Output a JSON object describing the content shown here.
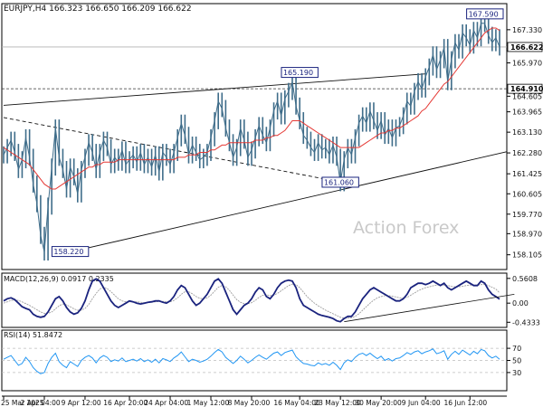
{
  "chart_data": {
    "type": "line",
    "main": {
      "header": "EURJPY,H4  166.323 166.650 166.209 166.622",
      "watermark": "Action Forex",
      "ylim": [
        157.5,
        168.4
      ],
      "yticks": [
        167.33,
        165.97,
        164.605,
        163.965,
        163.13,
        162.28,
        161.425,
        160.605,
        159.77,
        158.97,
        158.105
      ],
      "ytick_labels": [
        "167.330",
        "165.970",
        "164.605",
        "163.965",
        "163.130",
        "162.280",
        "161.425",
        "160.605",
        "159.770",
        "158.970",
        "158.105"
      ],
      "current_price": "166.622",
      "level_price": "164.910",
      "level_value": 164.91,
      "annotations": [
        {
          "label": "167.590",
          "x": 131,
          "y": 167.59
        },
        {
          "label": "165.190",
          "x": 80,
          "y": 165.19
        },
        {
          "label": "161.060",
          "x": 91,
          "y": 161.06
        },
        {
          "label": "158.220",
          "x": 18,
          "y": 158.22
        }
      ],
      "trendlines": [
        {
          "x1": 0,
          "y1": 164.23,
          "x2": 114,
          "y2": 165.52,
          "style": "solid"
        },
        {
          "x1": 0,
          "y1": 163.73,
          "x2": 92,
          "y2": 161.06,
          "style": "dashed"
        },
        {
          "x1": 18,
          "y1": 158.22,
          "x2": 136,
          "y2": 162.33,
          "style": "solid"
        }
      ],
      "close_series": [
        162.2,
        162.5,
        162.8,
        162.3,
        161.6,
        162.0,
        162.9,
        162.1,
        161.0,
        160.2,
        158.9,
        158.22,
        160.1,
        161.7,
        163.3,
        162.1,
        161.6,
        160.8,
        161.7,
        161.3,
        160.6,
        161.6,
        162.1,
        162.7,
        162.3,
        161.6,
        162.3,
        162.8,
        162.5,
        161.8,
        162.1,
        161.9,
        162.4,
        161.8,
        162.0,
        162.2,
        161.9,
        162.3,
        161.8,
        162.1,
        161.7,
        162.2,
        161.5,
        162.3,
        162.1,
        161.8,
        162.3,
        162.9,
        163.5,
        163.0,
        162.2,
        162.6,
        162.3,
        162.0,
        162.1,
        162.3,
        162.9,
        163.6,
        164.4,
        164.1,
        163.3,
        162.7,
        162.1,
        162.5,
        163.3,
        162.8,
        162.1,
        162.4,
        162.9,
        163.4,
        163.0,
        162.7,
        163.3,
        164.0,
        164.4,
        163.8,
        164.5,
        164.8,
        165.19,
        164.2,
        163.6,
        163.0,
        162.8,
        162.5,
        162.3,
        162.7,
        162.4,
        162.5,
        162.2,
        162.6,
        162.1,
        161.06,
        162.0,
        162.5,
        162.2,
        162.9,
        163.5,
        163.8,
        163.5,
        164.0,
        163.6,
        163.2,
        163.6,
        163.0,
        163.3,
        162.9,
        163.3,
        163.4,
        163.8,
        164.4,
        164.2,
        164.8,
        165.2,
        164.9,
        165.4,
        165.8,
        166.3,
        165.7,
        166.1,
        166.6,
        165.2,
        166.1,
        166.8,
        166.5,
        167.2,
        167.0,
        166.7,
        167.3,
        167.0,
        167.6,
        167.59,
        167.1,
        166.8,
        167.0,
        166.622
      ],
      "ma_series": [
        162.5,
        162.4,
        162.3,
        162.2,
        162.1,
        162.0,
        161.9,
        161.8,
        161.6,
        161.4,
        161.2,
        161.0,
        160.9,
        160.8,
        160.8,
        160.9,
        161.0,
        161.1,
        161.2,
        161.3,
        161.4,
        161.5,
        161.6,
        161.7,
        161.7,
        161.8,
        161.8,
        161.9,
        161.9,
        161.9,
        161.9,
        162.0,
        162.0,
        162.0,
        162.0,
        162.0,
        162.0,
        162.0,
        162.0,
        162.0,
        162.0,
        162.0,
        162.0,
        162.0,
        162.0,
        162.0,
        162.0,
        162.1,
        162.1,
        162.1,
        162.2,
        162.2,
        162.2,
        162.3,
        162.3,
        162.3,
        162.4,
        162.4,
        162.5,
        162.6,
        162.6,
        162.7,
        162.7,
        162.7,
        162.7,
        162.7,
        162.7,
        162.7,
        162.8,
        162.8,
        162.8,
        162.9,
        162.9,
        163.0,
        163.0,
        163.1,
        163.2,
        163.4,
        163.6,
        163.6,
        163.6,
        163.5,
        163.4,
        163.3,
        163.2,
        163.1,
        163.0,
        162.9,
        162.8,
        162.7,
        162.6,
        162.5,
        162.5,
        162.5,
        162.5,
        162.5,
        162.5,
        162.6,
        162.7,
        162.8,
        162.9,
        163.0,
        163.1,
        163.1,
        163.2,
        163.2,
        163.3,
        163.3,
        163.4,
        163.5,
        163.6,
        163.7,
        163.8,
        164.0,
        164.1,
        164.3,
        164.5,
        164.7,
        164.9,
        165.1,
        165.2,
        165.4,
        165.6,
        165.8,
        166.0,
        166.2,
        166.4,
        166.6,
        166.8,
        167.0,
        167.2,
        167.3,
        167.4,
        167.4,
        167.3
      ]
    },
    "macd": {
      "header": "MACD(12,26,9) 0.0917 0.2335",
      "ylim": [
        -0.55,
        0.68
      ],
      "ytick_labels": [
        "0.5608",
        "0.00",
        "-0.4333"
      ],
      "yticks": [
        0.5608,
        0.0,
        -0.4333
      ],
      "trendline": {
        "x1": 92,
        "y1": -0.42,
        "x2": 138,
        "y2": 0.2
      },
      "macd_series": [
        0.05,
        0.1,
        0.12,
        0.08,
        0.0,
        -0.08,
        -0.12,
        -0.15,
        -0.25,
        -0.3,
        -0.32,
        -0.3,
        -0.2,
        -0.05,
        0.1,
        0.15,
        0.05,
        -0.1,
        -0.2,
        -0.25,
        -0.22,
        -0.12,
        0.05,
        0.3,
        0.5,
        0.55,
        0.5,
        0.35,
        0.2,
        0.05,
        -0.05,
        -0.1,
        -0.05,
        0.0,
        0.05,
        0.03,
        0.0,
        -0.02,
        0.0,
        0.02,
        0.03,
        0.05,
        0.05,
        0.02,
        0.0,
        0.05,
        0.15,
        0.3,
        0.4,
        0.35,
        0.2,
        0.05,
        -0.05,
        0.0,
        0.1,
        0.2,
        0.35,
        0.5,
        0.55,
        0.45,
        0.25,
        0.05,
        -0.15,
        -0.25,
        -0.15,
        -0.05,
        0.0,
        0.1,
        0.25,
        0.35,
        0.3,
        0.15,
        0.1,
        0.2,
        0.35,
        0.45,
        0.5,
        0.52,
        0.5,
        0.35,
        0.1,
        -0.05,
        -0.1,
        -0.15,
        -0.2,
        -0.25,
        -0.28,
        -0.3,
        -0.32,
        -0.35,
        -0.4,
        -0.42,
        -0.35,
        -0.3,
        -0.3,
        -0.2,
        -0.05,
        0.1,
        0.2,
        0.3,
        0.35,
        0.3,
        0.25,
        0.2,
        0.15,
        0.1,
        0.05,
        0.05,
        0.1,
        0.2,
        0.35,
        0.4,
        0.45,
        0.45,
        0.42,
        0.45,
        0.5,
        0.45,
        0.4,
        0.45,
        0.35,
        0.3,
        0.35,
        0.4,
        0.45,
        0.5,
        0.45,
        0.4,
        0.4,
        0.5,
        0.45,
        0.3,
        0.2,
        0.15,
        0.0917
      ],
      "signal_series": [
        0.0,
        0.03,
        0.06,
        0.07,
        0.06,
        0.03,
        -0.01,
        -0.05,
        -0.1,
        -0.15,
        -0.2,
        -0.23,
        -0.23,
        -0.2,
        -0.13,
        -0.06,
        -0.02,
        -0.04,
        -0.08,
        -0.13,
        -0.16,
        -0.16,
        -0.12,
        -0.03,
        0.1,
        0.22,
        0.32,
        0.36,
        0.33,
        0.26,
        0.18,
        0.1,
        0.05,
        0.03,
        0.03,
        0.03,
        0.03,
        0.02,
        0.01,
        0.01,
        0.02,
        0.03,
        0.04,
        0.04,
        0.03,
        0.03,
        0.06,
        0.12,
        0.2,
        0.26,
        0.26,
        0.21,
        0.15,
        0.11,
        0.1,
        0.12,
        0.18,
        0.27,
        0.36,
        0.4,
        0.37,
        0.29,
        0.18,
        0.08,
        0.02,
        -0.01,
        -0.01,
        0.01,
        0.06,
        0.13,
        0.18,
        0.19,
        0.17,
        0.18,
        0.22,
        0.28,
        0.34,
        0.4,
        0.43,
        0.42,
        0.35,
        0.25,
        0.15,
        0.07,
        0.0,
        -0.06,
        -0.11,
        -0.16,
        -0.2,
        -0.24,
        -0.28,
        -0.32,
        -0.34,
        -0.34,
        -0.33,
        -0.3,
        -0.24,
        -0.16,
        -0.08,
        0.0,
        0.07,
        0.12,
        0.15,
        0.17,
        0.17,
        0.16,
        0.14,
        0.12,
        0.12,
        0.13,
        0.18,
        0.23,
        0.28,
        0.32,
        0.35,
        0.37,
        0.39,
        0.41,
        0.41,
        0.41,
        0.4,
        0.38,
        0.37,
        0.37,
        0.38,
        0.4,
        0.41,
        0.41,
        0.41,
        0.42,
        0.43,
        0.4,
        0.36,
        0.32,
        0.2335
      ]
    },
    "rsi": {
      "header": "RSI(14) 51.8472",
      "ylim": [
        0,
        100
      ],
      "yticks": [
        70,
        50,
        30
      ],
      "ytick_labels": [
        "70",
        "50",
        "30"
      ],
      "series": [
        52,
        55,
        58,
        50,
        42,
        45,
        55,
        48,
        38,
        32,
        28,
        30,
        45,
        55,
        62,
        48,
        42,
        38,
        48,
        44,
        40,
        50,
        55,
        58,
        54,
        46,
        54,
        58,
        55,
        48,
        51,
        49,
        54,
        48,
        50,
        52,
        49,
        53,
        48,
        51,
        47,
        52,
        46,
        53,
        51,
        48,
        54,
        58,
        64,
        56,
        48,
        52,
        50,
        47,
        49,
        52,
        57,
        63,
        68,
        64,
        55,
        50,
        45,
        50,
        57,
        52,
        46,
        50,
        55,
        59,
        55,
        52,
        57,
        62,
        64,
        58,
        63,
        65,
        67,
        56,
        50,
        45,
        44,
        42,
        41,
        46,
        43,
        45,
        42,
        47,
        42,
        35,
        46,
        51,
        48,
        55,
        60,
        62,
        58,
        62,
        57,
        53,
        57,
        50,
        53,
        49,
        53,
        54,
        58,
        63,
        60,
        64,
        66,
        61,
        64,
        66,
        69,
        61,
        63,
        66,
        52,
        60,
        65,
        60,
        67,
        63,
        59,
        65,
        61,
        68,
        66,
        58,
        54,
        57,
        51.85
      ]
    },
    "x_labels": [
      "25 Mar 2025",
      "2 Apr 04:00",
      "9 Apr 12:00",
      "16 Apr 20:00",
      "24 Apr 04:00",
      "1 May 12:00",
      "8 May 20:00",
      "16 May 04:00",
      "23 May 12:00",
      "30 May 20:00",
      "9 Jun 04:00",
      "16 Jun 12:00"
    ],
    "x_label_index": [
      0,
      11,
      22,
      34,
      45,
      56,
      67,
      80,
      91,
      102,
      114,
      126
    ],
    "colors": {
      "price": "#3f6d8a",
      "ma": "#e53935",
      "macd": "#1a237e",
      "signal": "#9e9e9e",
      "rsi": "#2196f3",
      "label_box": "#1a237e",
      "trend": "#111111"
    }
  }
}
